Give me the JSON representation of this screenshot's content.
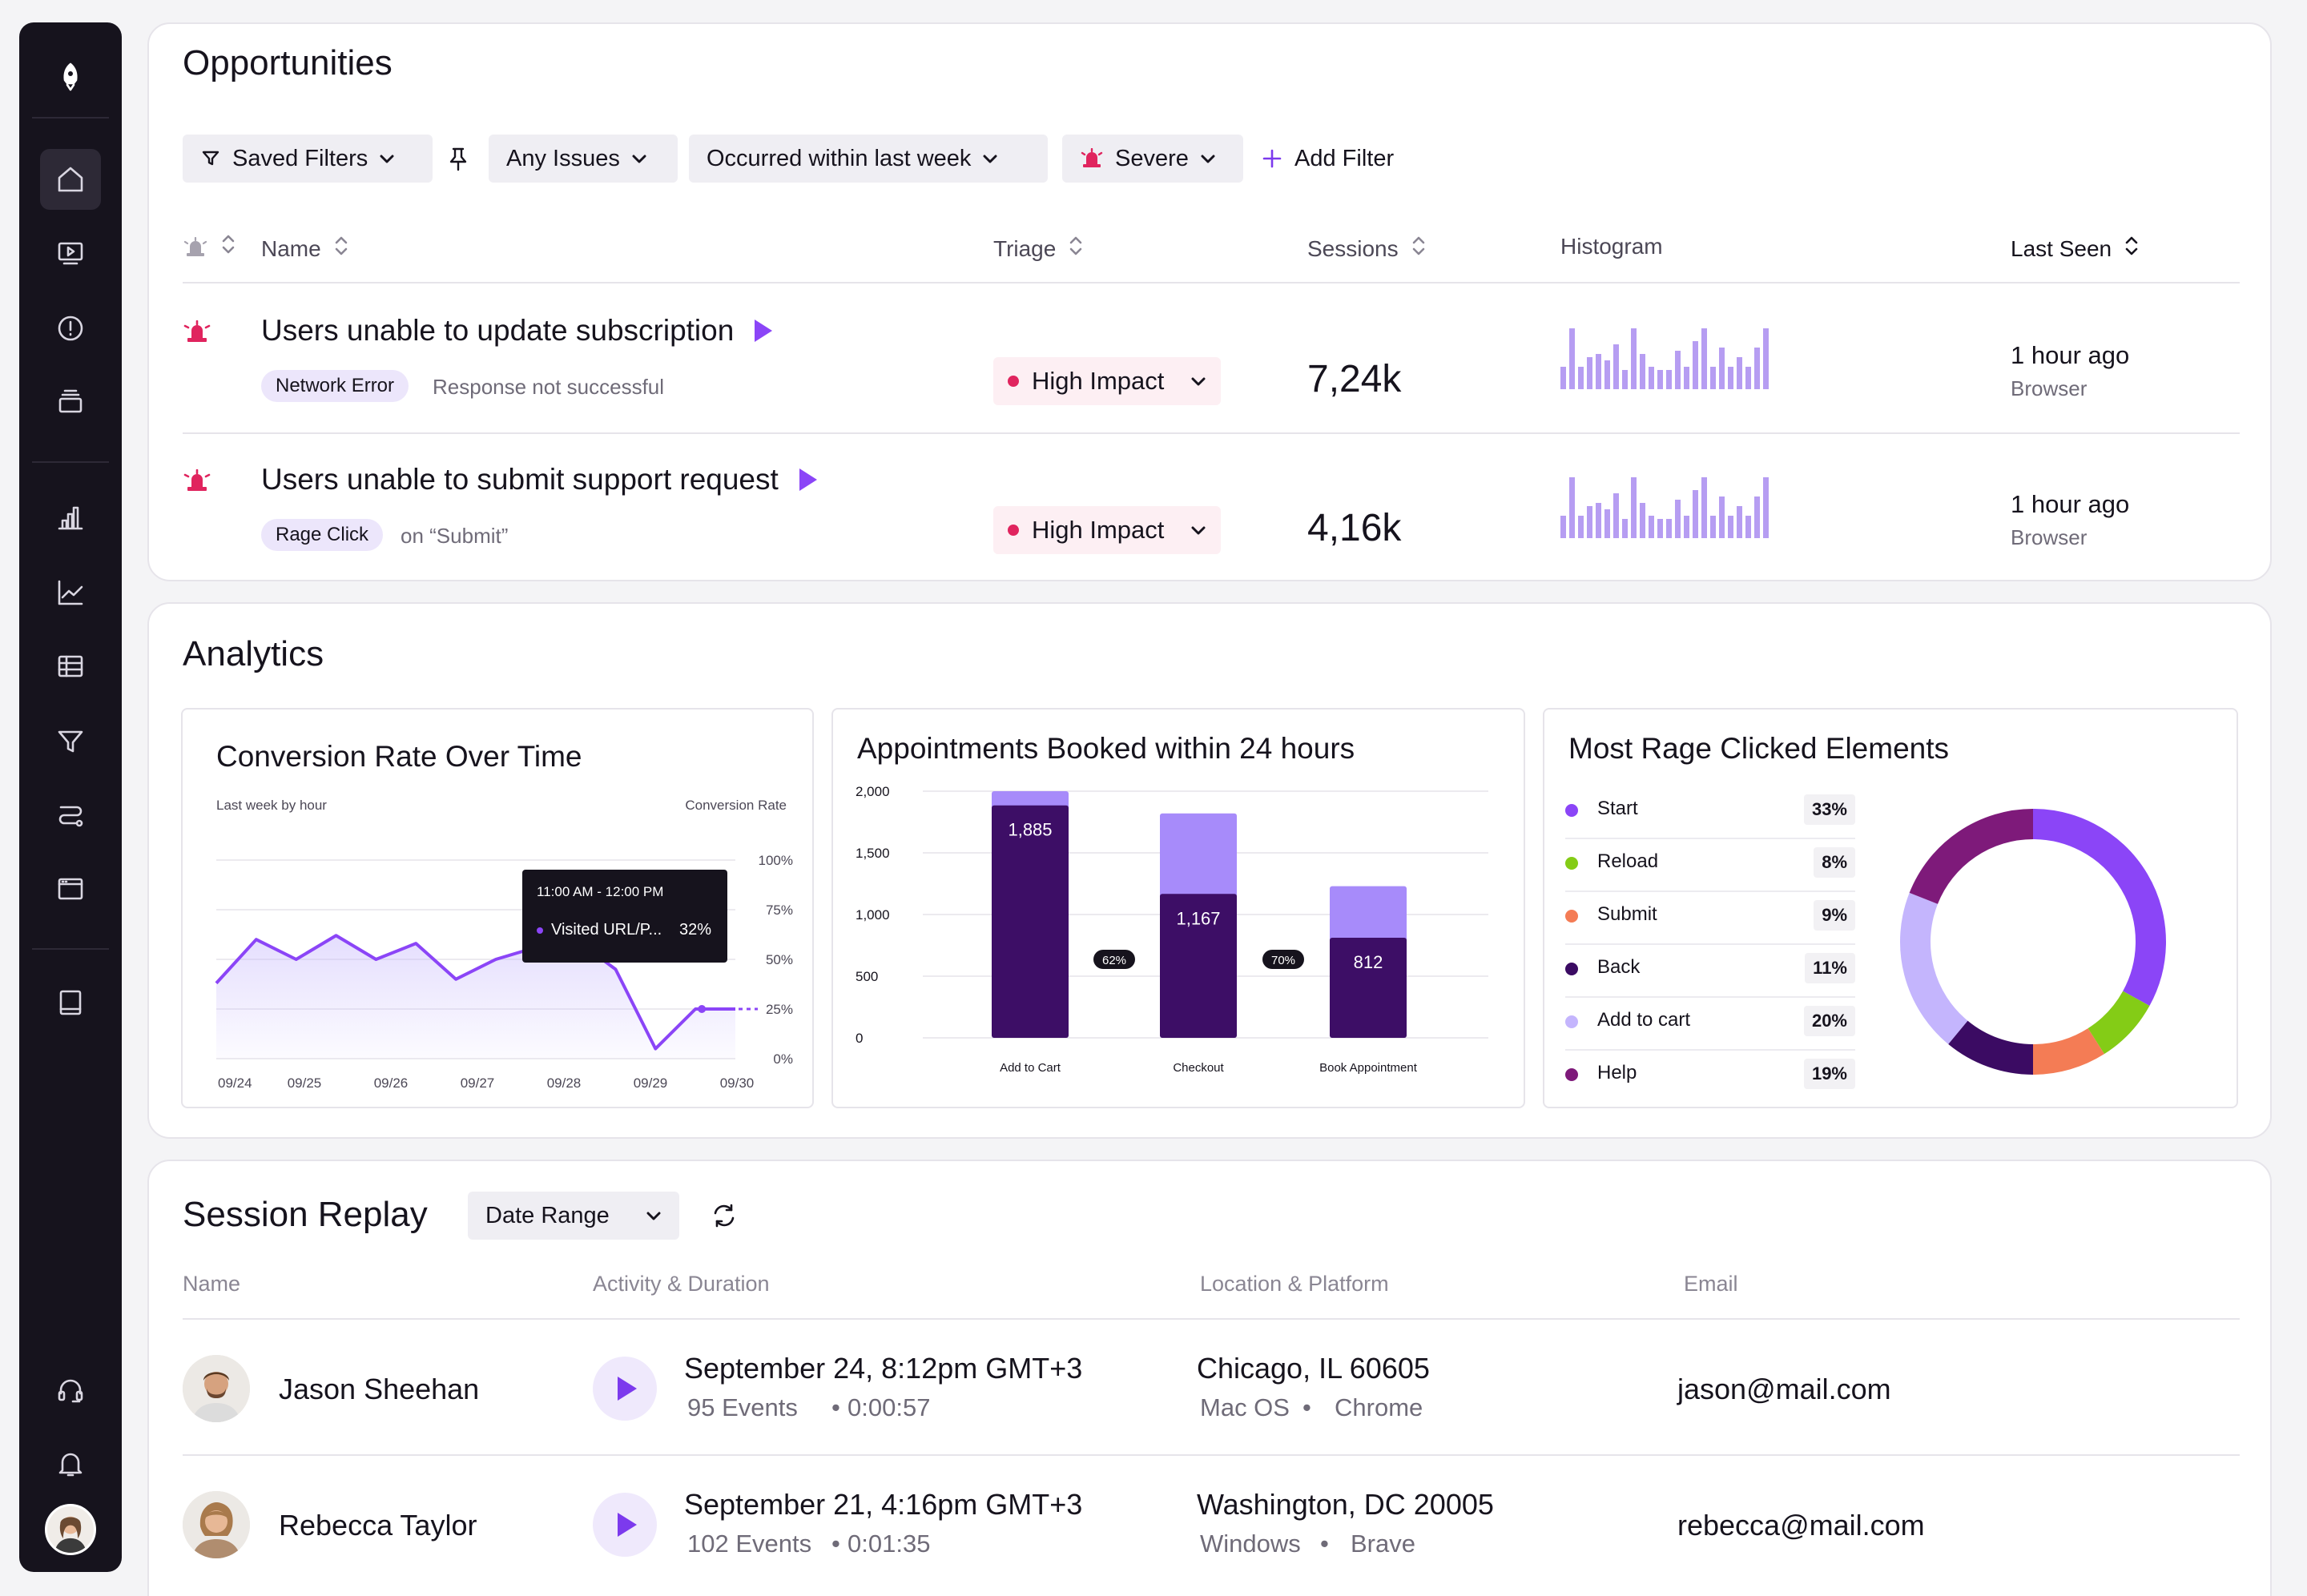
{
  "sidebar": {
    "icons": [
      "rocket-logo-icon",
      "home-icon",
      "video-icon",
      "alert-icon",
      "stack-icon",
      "bar-chart-icon",
      "line-chart-icon",
      "table-icon",
      "funnel-icon",
      "route-icon",
      "window-icon",
      "book-icon",
      "headset-icon",
      "bell-icon",
      "user-avatar"
    ]
  },
  "opportunities": {
    "title": "Opportunities",
    "filters": {
      "saved": "Saved Filters",
      "issues": "Any Issues",
      "occurred": "Occurred within last week",
      "severe": "Severe",
      "add": "Add Filter"
    },
    "columns": {
      "name": "Name",
      "triage": "Triage",
      "sessions": "Sessions",
      "histogram": "Histogram",
      "last_seen": "Last Seen"
    },
    "rows": [
      {
        "title": "Users unable to update subscription",
        "tag": "Network Error",
        "detail": "Response not successful",
        "triage": "High Impact",
        "sessions": "7,24k",
        "last_seen": "1 hour ago",
        "source": "Browser",
        "histogram": [
          0.35,
          0.95,
          0.35,
          0.5,
          0.55,
          0.45,
          0.7,
          0.3,
          0.95,
          0.55,
          0.35,
          0.3,
          0.3,
          0.6,
          0.35,
          0.75,
          0.95,
          0.35,
          0.65,
          0.35,
          0.5,
          0.35,
          0.65,
          0.95
        ]
      },
      {
        "title": "Users unable to submit support request",
        "tag": "Rage Click",
        "detail": "on “Submit”",
        "triage": "High Impact",
        "sessions": "4,16k",
        "last_seen": "1 hour ago",
        "source": "Browser",
        "histogram": [
          0.35,
          0.95,
          0.35,
          0.5,
          0.55,
          0.45,
          0.7,
          0.3,
          0.95,
          0.55,
          0.35,
          0.3,
          0.3,
          0.6,
          0.35,
          0.75,
          0.95,
          0.35,
          0.65,
          0.35,
          0.5,
          0.35,
          0.65,
          0.95
        ]
      }
    ]
  },
  "analytics": {
    "title": "Analytics",
    "conversion": {
      "title": "Conversion Rate Over Time",
      "subtitle": "Last week by hour",
      "ylabel": "Conversion Rate",
      "yticks": [
        "100%",
        "75%",
        "50%",
        "25%",
        "0%"
      ],
      "xticks": [
        "09/24",
        "09/25",
        "09/26",
        "09/27",
        "09/28",
        "09/29",
        "09/30"
      ],
      "tooltip_time": "11:00 AM - 12:00 PM",
      "tooltip_label": "Visited URL/P...",
      "tooltip_value": "32%",
      "series": [
        38,
        60,
        50,
        62,
        50,
        58,
        40,
        50,
        56,
        60,
        45,
        5,
        25,
        25
      ],
      "color": "#8b45f7"
    },
    "appointments": {
      "title": "Appointments Booked within 24 hours",
      "yticks": [
        "2,000",
        "1,500",
        "1,000",
        "500",
        "0"
      ],
      "categories": [
        "Add to Cart",
        "Checkout",
        "Book Appointment"
      ],
      "booked": [
        1885,
        1167,
        812
      ],
      "total": [
        2000,
        1820,
        1230
      ],
      "conversion": [
        "62%",
        "70%"
      ],
      "ylim": [
        0,
        2000
      ]
    },
    "rage": {
      "title": "Most Rage Clicked Elements",
      "items": [
        {
          "label": "Start",
          "value": "33%",
          "pct": 33,
          "color": "#8b45f7"
        },
        {
          "label": "Reload",
          "value": "8%",
          "pct": 8,
          "color": "#84cc16"
        },
        {
          "label": "Submit",
          "value": "9%",
          "pct": 9,
          "color": "#f47c55"
        },
        {
          "label": "Back",
          "value": "11%",
          "pct": 11,
          "color": "#3b0b63"
        },
        {
          "label": "Add to cart",
          "value": "20%",
          "pct": 20,
          "color": "#c4b5fd"
        },
        {
          "label": "Help",
          "value": "19%",
          "pct": 19,
          "color": "#7e1a7a"
        }
      ]
    }
  },
  "session_replay": {
    "title": "Session Replay",
    "date_range": "Date Range",
    "columns": {
      "name": "Name",
      "activity": "Activity & Duration",
      "location": "Location & Platform",
      "email": "Email"
    },
    "rows": [
      {
        "name": "Jason Sheehan",
        "date": "September 24, 8:12pm GMT+3",
        "events": "95 Events",
        "duration": "0:00:57",
        "location": "Chicago, IL 60605",
        "os": "Mac OS",
        "browser": "Chrome",
        "email": "jason@mail.com"
      },
      {
        "name": "Rebecca Taylor",
        "date": "September 21, 4:16pm GMT+3",
        "events": "102 Events",
        "duration": "0:01:35",
        "location": "Washington, DC 20005",
        "os": "Windows",
        "browser": "Brave",
        "email": "rebecca@mail.com"
      }
    ]
  }
}
